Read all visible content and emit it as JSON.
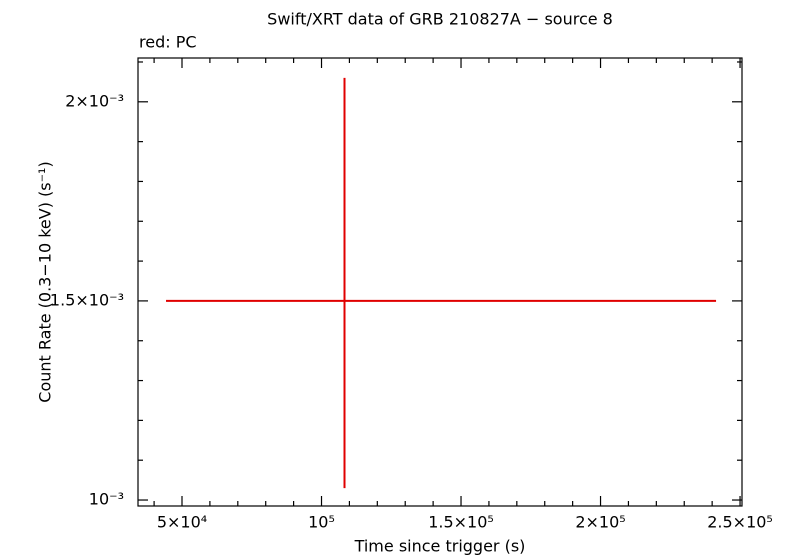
{
  "chart_data": {
    "type": "errorbar",
    "title": "Swift/XRT data of GRB 210827A − source 8",
    "annotation": "red: PC",
    "xlabel": "Time since trigger (s)",
    "ylabel": "Count Rate (0.3−10 keV) (s⁻¹)",
    "xlim": [
      34230,
      250700
    ],
    "ylim": [
      0.000985,
      0.00211
    ],
    "xticks": [
      {
        "value": 50000,
        "label": "5×10⁴"
      },
      {
        "value": 100000,
        "label": "10⁵"
      },
      {
        "value": 150000,
        "label": "1.5×10⁵"
      },
      {
        "value": 200000,
        "label": "2×10⁵"
      },
      {
        "value": 250000,
        "label": "2.5×10⁵"
      }
    ],
    "yticks": [
      {
        "value": 0.001,
        "label": "10⁻³"
      },
      {
        "value": 0.0015,
        "label": "1.5×10⁻³"
      },
      {
        "value": 0.002,
        "label": "2×10⁻³"
      }
    ],
    "xminorticks": [
      40000,
      60000,
      70000,
      80000,
      90000,
      110000,
      120000,
      130000,
      140000,
      160000,
      170000,
      180000,
      190000,
      210000,
      220000,
      230000,
      240000
    ],
    "yminorticks": [
      0.0011,
      0.0012,
      0.0013,
      0.0014,
      0.0016,
      0.0017,
      0.0018,
      0.0019,
      0.0021
    ],
    "series": [
      {
        "name": "PC",
        "color": "#e00000",
        "x": [
          108240
        ],
        "xlo": [
          44270
        ],
        "xhi": [
          241400
        ],
        "values": [
          0.0015
        ],
        "ylo": [
          0.00103
        ],
        "yhi": [
          0.00206
        ]
      }
    ]
  }
}
